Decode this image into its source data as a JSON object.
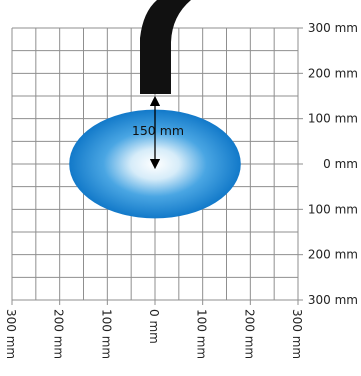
{
  "colors": {
    "background": "#ffffff",
    "grid": "#8f8f8f",
    "spot_outer": "#1279c9",
    "spot_inner": "#ffffff",
    "nozzle": "#111111",
    "arrow": "#000000"
  },
  "grid": {
    "x_range_mm": [
      -300,
      300
    ],
    "y_range_mm": [
      -300,
      300
    ],
    "step_mm": 50
  },
  "axis_labels": {
    "right": [
      "300 mm",
      "200 mm",
      "100 mm",
      "0 mm",
      "100 mm",
      "200 mm",
      "300 mm"
    ],
    "bottom": [
      "300 mm",
      "200 mm",
      "100 mm",
      "0 mm",
      "100 mm",
      "200 mm",
      "300 mm"
    ]
  },
  "annotation": {
    "distance_label": "150 mm",
    "distance_mm": 150
  },
  "spot": {
    "center_mm": [
      0,
      0
    ],
    "width_mm": 360,
    "height_mm": 240
  }
}
